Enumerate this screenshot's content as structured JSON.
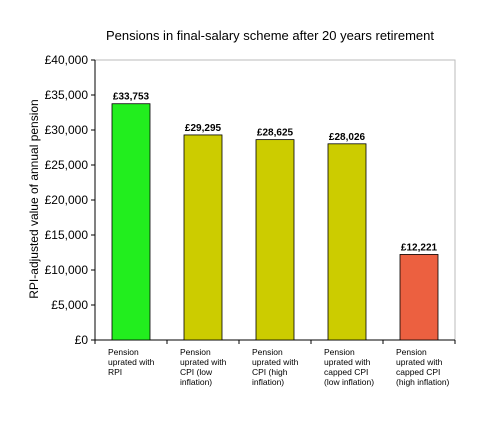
{
  "chart_data": {
    "type": "bar",
    "title": "Pensions in final-salary scheme after 20 years retirement",
    "xlabel": "",
    "ylabel": "RPI-adjusted value of annual pension",
    "ylim": [
      0,
      40000
    ],
    "yticks": [
      0,
      5000,
      10000,
      15000,
      20000,
      25000,
      30000,
      35000,
      40000
    ],
    "ytick_labels": [
      "£0",
      "£5,000",
      "£10,000",
      "£15,000",
      "£20,000",
      "£25,000",
      "£30,000",
      "£35,000",
      "£40,000"
    ],
    "grid": false,
    "categories": [
      [
        "Pension",
        "uprated with",
        "RPI"
      ],
      [
        "Pension",
        "uprated with",
        "CPI (low",
        "inflation)"
      ],
      [
        "Pension",
        "uprated with",
        "CPI (high",
        "inflation)"
      ],
      [
        "Pension",
        "uprated with",
        "capped CPI",
        "(low inflation)"
      ],
      [
        "Pension",
        "uprated with",
        "capped CPI",
        "(high inflation)"
      ]
    ],
    "values": [
      33753,
      29295,
      28625,
      28026,
      12221
    ],
    "value_labels": [
      "£33,753",
      "£29,295",
      "£28,625",
      "£28,026",
      "£12,221"
    ],
    "bar_colors": [
      "#22ee1e",
      "#cccc00",
      "#cccc00",
      "#cccc00",
      "#ec6040"
    ]
  }
}
